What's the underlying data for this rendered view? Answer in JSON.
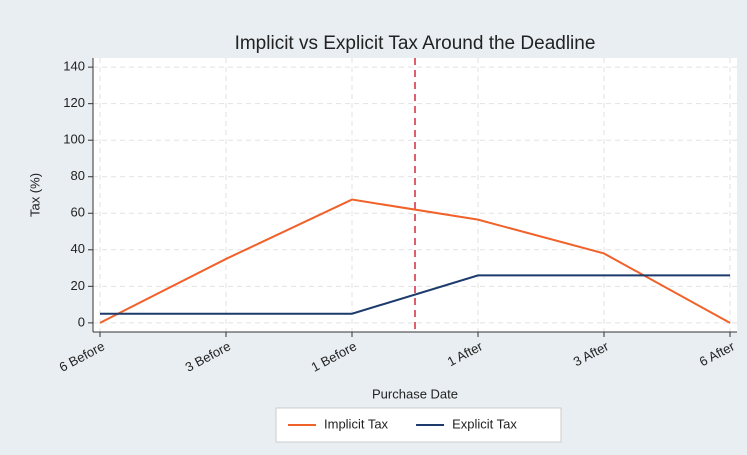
{
  "chart_data": {
    "type": "line",
    "title": "Implicit vs Explicit Tax Around the Deadline",
    "x_label": "Purchase Date",
    "y_label": "Tax (%)",
    "categories": [
      "6 Before",
      "3 Before",
      "1 Before",
      "1 After",
      "3 After",
      "6 After"
    ],
    "series": [
      {
        "name": "Implicit Tax",
        "color": "#f0622a",
        "values": [
          0,
          35,
          67.5,
          56.5,
          38,
          0
        ]
      },
      {
        "name": "Explicit Tax",
        "color": "#1c3a6b",
        "values": [
          5,
          5,
          5,
          26,
          26,
          26
        ]
      }
    ],
    "ylim": [
      -5,
      145
    ],
    "yticks": [
      0,
      20,
      40,
      60,
      80,
      100,
      120,
      140
    ],
    "grid": true,
    "reference_line": {
      "x": 2.5,
      "color": "#d62a3c",
      "style": "dashed"
    },
    "legend": "bottom"
  }
}
